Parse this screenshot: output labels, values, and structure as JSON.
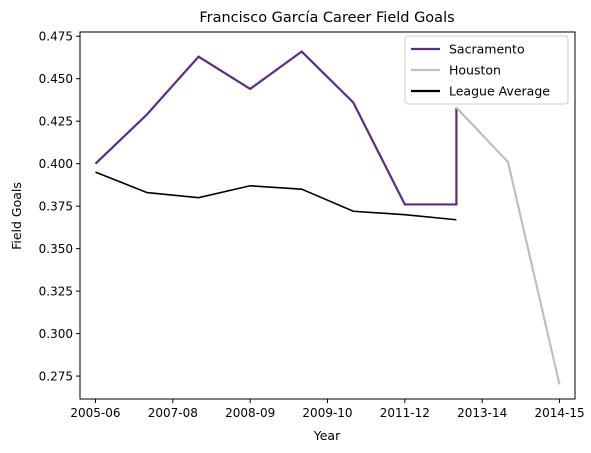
{
  "chart_data": {
    "type": "line",
    "title": "Francisco García  Career Field Goals",
    "xlabel": "Year",
    "ylabel": "Field Goals",
    "x_tick_labels": [
      "2005-06",
      "2007-08",
      "2008-09",
      "2009-10",
      "2011-12",
      "2013-14",
      "2014-15"
    ],
    "y_tick_labels": [
      "0.275",
      "0.300",
      "0.325",
      "0.350",
      "0.375",
      "0.400",
      "0.425",
      "0.450",
      "0.475"
    ],
    "y_ticks": [
      0.275,
      0.3,
      0.325,
      0.35,
      0.375,
      0.4,
      0.425,
      0.45,
      0.475
    ],
    "xlim": [
      -0.3,
      9.3
    ],
    "ylim": [
      0.2615,
      0.4775
    ],
    "grid": false,
    "legend_position": "top-right",
    "series": [
      {
        "name": "Sacramento",
        "color": "#5a2d82",
        "points": [
          [
            0,
            0.4
          ],
          [
            1,
            0.429
          ],
          [
            2,
            0.463
          ],
          [
            3,
            0.444
          ],
          [
            4,
            0.466
          ],
          [
            5,
            0.436
          ],
          [
            6,
            0.376
          ],
          [
            7,
            0.376
          ],
          [
            7,
            0.433
          ]
        ]
      },
      {
        "name": "Houston",
        "color": "#bebebe",
        "points": [
          [
            7,
            0.433
          ],
          [
            8,
            0.401
          ],
          [
            9,
            0.27
          ]
        ]
      },
      {
        "name": "League Average",
        "color": "#000000",
        "points": [
          [
            0,
            0.395
          ],
          [
            1,
            0.383
          ],
          [
            2,
            0.38
          ],
          [
            3,
            0.387
          ],
          [
            4,
            0.385
          ],
          [
            5,
            0.372
          ],
          [
            6,
            0.37
          ],
          [
            7,
            0.367
          ]
        ]
      }
    ]
  }
}
